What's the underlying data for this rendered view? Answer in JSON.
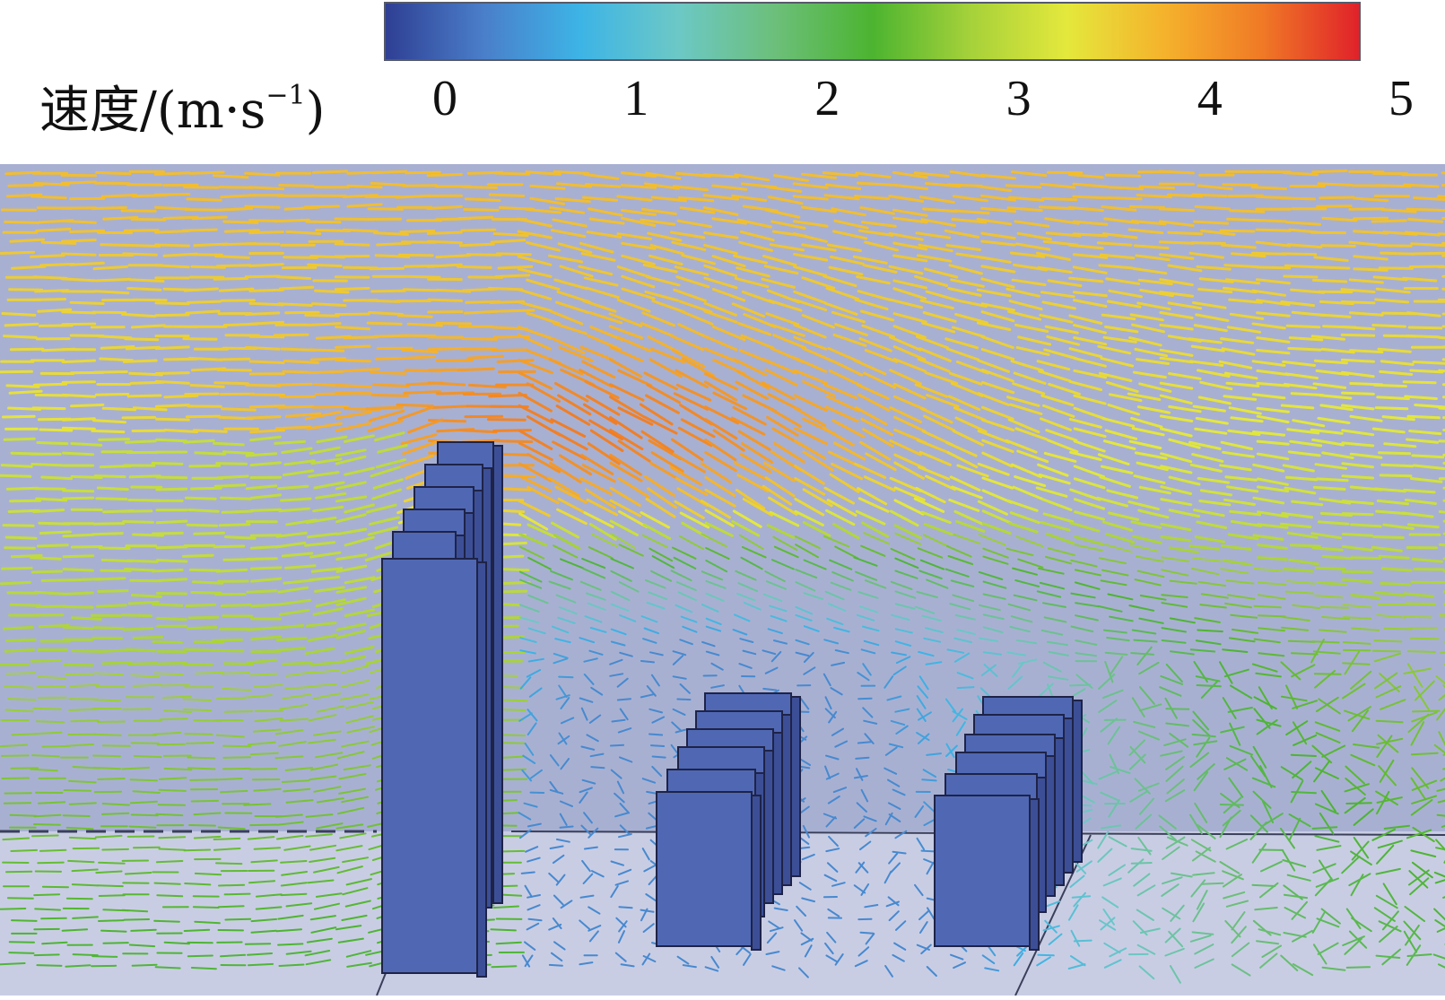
{
  "legend": {
    "label_main": "速度/(m·s",
    "label_sup": "−1",
    "label_close": ")",
    "ticks": [
      "0",
      "1",
      "2",
      "3",
      "4",
      "5"
    ],
    "colormap": [
      "#2f3f93",
      "#4a7ec9",
      "#3db4e6",
      "#6cc8c6",
      "#6cbf7a",
      "#4cb430",
      "#a5d13a",
      "#e4e83c",
      "#f5b22c",
      "#f07a26",
      "#e0222a"
    ],
    "range": [
      0,
      5
    ]
  },
  "scene": {
    "background_color": "#a8b0d2",
    "ground_color": "#c9cde4",
    "building_color": "#5068b4",
    "building_outline": "#1e2347",
    "buildings": [
      {
        "name": "tall-building-cluster"
      },
      {
        "name": "middle-building-cluster"
      },
      {
        "name": "right-building-cluster"
      }
    ],
    "flow": "velocity vectors around three building clusters"
  }
}
